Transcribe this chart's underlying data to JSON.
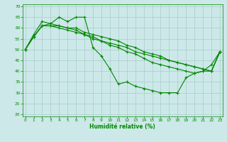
{
  "background_color": "#cce8e8",
  "grid_color": "#aacccc",
  "line_color": "#008800",
  "xlabel": "Humidité relative (%)",
  "xlabel_color": "#008800",
  "tick_color": "#008800",
  "yticks": [
    20,
    25,
    30,
    35,
    40,
    45,
    50,
    55,
    60,
    65,
    70
  ],
  "xticks": [
    0,
    1,
    2,
    3,
    4,
    5,
    6,
    7,
    8,
    9,
    10,
    11,
    12,
    13,
    14,
    15,
    16,
    17,
    18,
    19,
    20,
    21,
    22,
    23
  ],
  "ylim": [
    19,
    71
  ],
  "xlim": [
    -0.3,
    23.3
  ],
  "line1": [
    50,
    57,
    63,
    62,
    65,
    63,
    65,
    65,
    51,
    47,
    41,
    34,
    35,
    33,
    32,
    31,
    30,
    30,
    30,
    37,
    39,
    40,
    43,
    49
  ],
  "line2": [
    50,
    56,
    61,
    61,
    61,
    60,
    60,
    58,
    57,
    56,
    55,
    54,
    52,
    51,
    49,
    48,
    47,
    45,
    44,
    43,
    42,
    41,
    40,
    49
  ],
  "line3": [
    50,
    56,
    61,
    62,
    61,
    60,
    59,
    57,
    56,
    54,
    52,
    51,
    49,
    48,
    46,
    44,
    43,
    42,
    41,
    40,
    39,
    40,
    40,
    49
  ],
  "line4": [
    50,
    56,
    61,
    61,
    60,
    59,
    58,
    57,
    55,
    54,
    53,
    52,
    51,
    49,
    48,
    47,
    46,
    45,
    44,
    43,
    42,
    41,
    40,
    49
  ]
}
